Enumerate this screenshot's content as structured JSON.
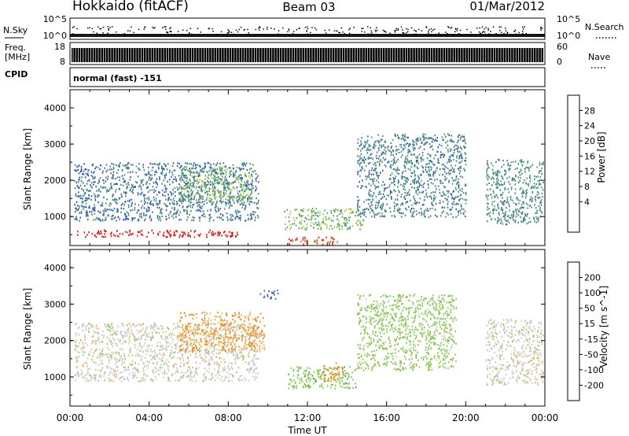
{
  "header": {
    "station": "Hokkaido (fitACF)",
    "beam": "Beam 03",
    "date": "01/Mar/2012"
  },
  "strip_labels": {
    "nsky": "N.Sky",
    "nsearch": "N.Search",
    "freq_line1": "Freq.",
    "freq_line2": "[MHz]",
    "nave": "Nave",
    "cpid": "CPID",
    "cpid_value": "normal (fast) -151",
    "nsky_ticks": [
      "10^5",
      "10^0"
    ],
    "nsearch_ticks": [
      "10^5",
      "10^0"
    ],
    "freq_ticks": [
      "18",
      "8"
    ],
    "nave_ticks": [
      "60",
      "0"
    ]
  },
  "colors": {
    "power_scale": [
      "#2a2ad8",
      "#2d52c0",
      "#3f7f86",
      "#4ea068",
      "#a8c93a",
      "#f0b22a",
      "#f06a10",
      "#e82a1a",
      "#d80c0c"
    ],
    "velocity_scale": [
      "#2a2ad8",
      "#3b5db8",
      "#4b8a5e",
      "#84c84a",
      "#c8c8c8",
      "#f0b44a",
      "#f08a1a",
      "#ee4a10",
      "#dd1010"
    ]
  },
  "chart_data": [
    {
      "type": "heatmap",
      "panel": "power",
      "xlabel": "",
      "ylabel": "Slant Range [km]",
      "x_ticks": [
        "00:00",
        "04:00",
        "08:00",
        "12:00",
        "16:00",
        "20:00",
        "00:00"
      ],
      "y_ticks": [
        1000,
        2000,
        3000,
        4000
      ],
      "ylim": [
        200,
        4500
      ],
      "colorbar": {
        "label": "Power [dB]",
        "ticks": [
          "28",
          "24",
          "20",
          "16",
          "12",
          "8",
          "4"
        ],
        "range": [
          0,
          32
        ]
      },
      "regions": [
        {
          "t": [
            0.2,
            9.5
          ],
          "r": [
            900,
            2500
          ],
          "value": 8
        },
        {
          "t": [
            5.5,
            9.2
          ],
          "r": [
            1400,
            2400
          ],
          "value": 14
        },
        {
          "t": [
            0.3,
            8.5
          ],
          "r": [
            450,
            650
          ],
          "value": 30
        },
        {
          "t": [
            10.8,
            14.8
          ],
          "r": [
            650,
            1250
          ],
          "value": 14
        },
        {
          "t": [
            11.0,
            13.6
          ],
          "r": [
            250,
            450
          ],
          "value": 26
        },
        {
          "t": [
            14.5,
            20.0
          ],
          "r": [
            1000,
            3300
          ],
          "value": 9
        },
        {
          "t": [
            21.0,
            23.9
          ],
          "r": [
            800,
            2600
          ],
          "value": 10
        }
      ]
    },
    {
      "type": "heatmap",
      "panel": "velocity",
      "xlabel": "Time UT",
      "ylabel": "Slant Range [km]",
      "x_ticks": [
        "00:00",
        "04:00",
        "08:00",
        "12:00",
        "16:00",
        "20:00",
        "00:00"
      ],
      "y_ticks": [
        1000,
        2000,
        3000,
        4000
      ],
      "ylim": [
        200,
        4500
      ],
      "colorbar": {
        "label": "Velocity [m s^-1]",
        "ticks": [
          "200",
          "100",
          "50",
          "15",
          "-15",
          "-50",
          "-100",
          "-200"
        ],
        "range": [
          -250,
          250
        ]
      },
      "regions": [
        {
          "t": [
            0.2,
            9.5
          ],
          "r": [
            900,
            2500
          ],
          "value": 0
        },
        {
          "t": [
            5.5,
            9.8
          ],
          "r": [
            1700,
            2800
          ],
          "value": -60
        },
        {
          "t": [
            9.6,
            10.5
          ],
          "r": [
            3150,
            3400
          ],
          "value": 180
        },
        {
          "t": [
            11.0,
            14.5
          ],
          "r": [
            700,
            1300
          ],
          "value": 35
        },
        {
          "t": [
            12.8,
            13.8
          ],
          "r": [
            900,
            1400
          ],
          "value": -70
        },
        {
          "t": [
            14.5,
            19.5
          ],
          "r": [
            1200,
            3300
          ],
          "value": 30
        },
        {
          "t": [
            21.0,
            23.9
          ],
          "r": [
            800,
            2600
          ],
          "value": 0
        }
      ]
    }
  ]
}
